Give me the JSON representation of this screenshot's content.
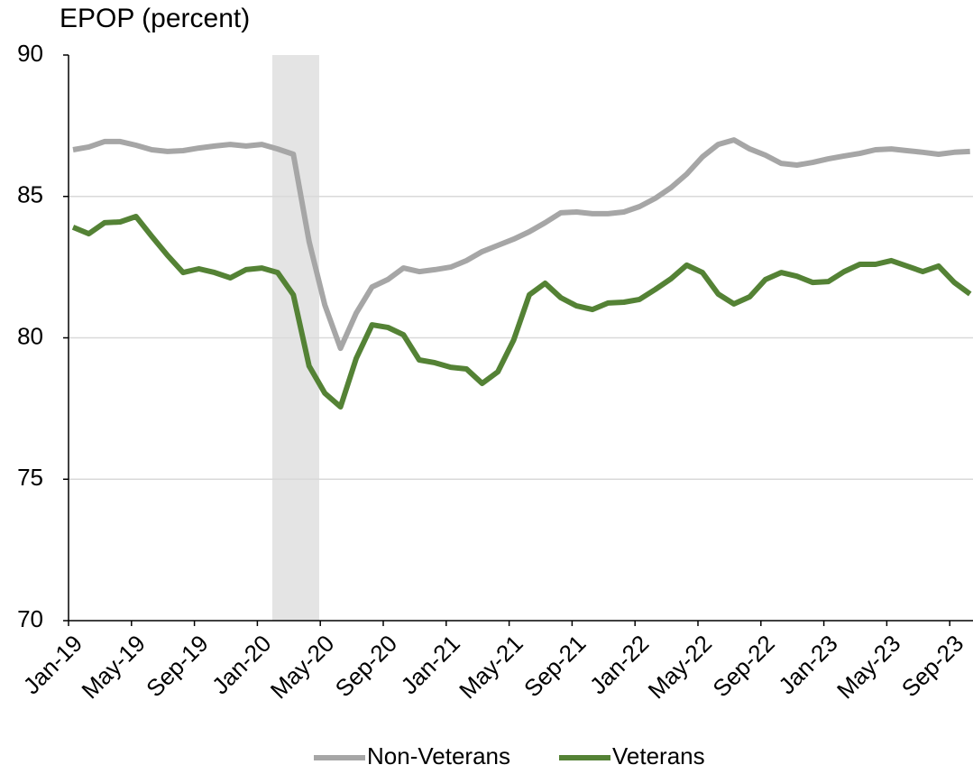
{
  "chart_data": {
    "type": "line",
    "title": "EPOP (percent)",
    "categories": [
      "Jan-19",
      null,
      null,
      null,
      "May-19",
      null,
      null,
      null,
      "Sep-19",
      null,
      null,
      null,
      "Jan-20",
      null,
      null,
      null,
      "May-20",
      null,
      null,
      null,
      "Sep-20",
      null,
      null,
      null,
      "Jan-21",
      null,
      null,
      null,
      "May-21",
      null,
      null,
      null,
      "Sep-21",
      null,
      null,
      null,
      "Jan-22",
      null,
      null,
      null,
      "May-22",
      null,
      null,
      null,
      "Sep-22",
      null,
      null,
      null,
      "Jan-23",
      null,
      null,
      null,
      "May-23",
      null,
      null,
      null,
      "Sep-23",
      null
    ],
    "series": [
      {
        "name": "Non-Veterans",
        "color": "#a6a6a6",
        "values": [
          86.65,
          86.75,
          86.94,
          86.94,
          86.81,
          86.65,
          86.59,
          86.62,
          86.71,
          86.78,
          86.84,
          86.78,
          86.84,
          86.68,
          86.49,
          83.4,
          81.16,
          79.63,
          80.88,
          81.8,
          82.06,
          82.47,
          82.34,
          82.41,
          82.5,
          82.73,
          83.05,
          83.27,
          83.49,
          83.75,
          84.07,
          84.42,
          84.45,
          84.39,
          84.39,
          84.45,
          84.64,
          84.93,
          85.31,
          85.79,
          86.4,
          86.84,
          87.0,
          86.68,
          86.46,
          86.17,
          86.11,
          86.2,
          86.33,
          86.43,
          86.52,
          86.65,
          86.68,
          86.62,
          86.56,
          86.49,
          86.56,
          86.59
        ]
      },
      {
        "name": "Veterans",
        "color": "#548235",
        "values": [
          83.91,
          83.68,
          84.07,
          84.1,
          84.29,
          83.59,
          82.92,
          82.31,
          82.44,
          82.31,
          82.12,
          82.41,
          82.47,
          82.31,
          81.52,
          79.0,
          78.04,
          77.56,
          79.28,
          80.46,
          80.37,
          80.11,
          79.22,
          79.12,
          78.96,
          78.9,
          78.39,
          78.8,
          79.92,
          81.52,
          81.93,
          81.42,
          81.13,
          81.0,
          81.23,
          81.26,
          81.36,
          81.71,
          82.09,
          82.57,
          82.31,
          81.55,
          81.2,
          81.45,
          82.06,
          82.31,
          82.18,
          81.96,
          81.99,
          82.34,
          82.6,
          82.6,
          82.73,
          82.54,
          82.34,
          82.54,
          81.96,
          81.55
        ]
      }
    ],
    "ylim": [
      70,
      90
    ],
    "yticks": [
      70,
      75,
      80,
      85,
      90
    ],
    "grid": true
  }
}
